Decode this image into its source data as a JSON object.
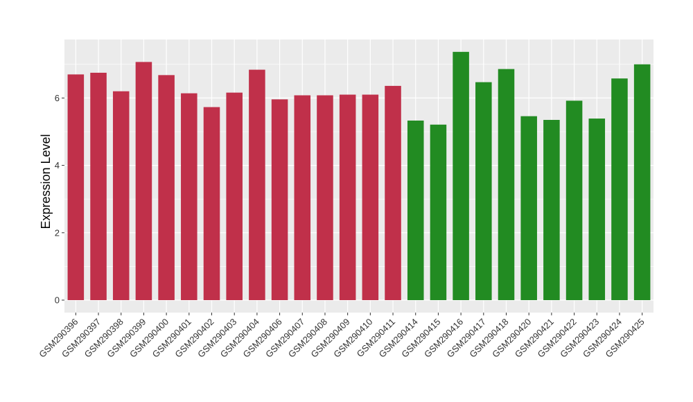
{
  "chart_data": {
    "type": "bar",
    "title": "",
    "xlabel": "",
    "ylabel": "Expression Level",
    "ylim": [
      0,
      7.7
    ],
    "yticks": [
      0,
      2,
      4,
      6
    ],
    "grid": true,
    "legend": "none",
    "colors": {
      "group_a": "#c0304a",
      "group_b": "#228b22",
      "panel_bg": "#ebebeb",
      "grid": "#ffffff"
    },
    "categories": [
      "GSM290396",
      "GSM290397",
      "GSM290398",
      "GSM290399",
      "GSM290400",
      "GSM290401",
      "GSM290402",
      "GSM290403",
      "GSM290404",
      "GSM290406",
      "GSM290407",
      "GSM290408",
      "GSM290409",
      "GSM290410",
      "GSM290411",
      "GSM290414",
      "GSM290415",
      "GSM290416",
      "GSM290417",
      "GSM290418",
      "GSM290420",
      "GSM290421",
      "GSM290422",
      "GSM290423",
      "GSM290424",
      "GSM290425"
    ],
    "values": [
      6.7,
      6.75,
      6.2,
      7.07,
      6.68,
      6.14,
      5.73,
      6.16,
      6.84,
      5.96,
      6.08,
      6.08,
      6.1,
      6.1,
      6.36,
      5.33,
      5.21,
      7.37,
      6.47,
      6.86,
      5.46,
      5.35,
      5.92,
      5.39,
      6.58,
      7.0
    ],
    "groups": [
      "a",
      "a",
      "a",
      "a",
      "a",
      "a",
      "a",
      "a",
      "a",
      "a",
      "a",
      "a",
      "a",
      "a",
      "a",
      "b",
      "b",
      "b",
      "b",
      "b",
      "b",
      "b",
      "b",
      "b",
      "b",
      "b"
    ]
  }
}
